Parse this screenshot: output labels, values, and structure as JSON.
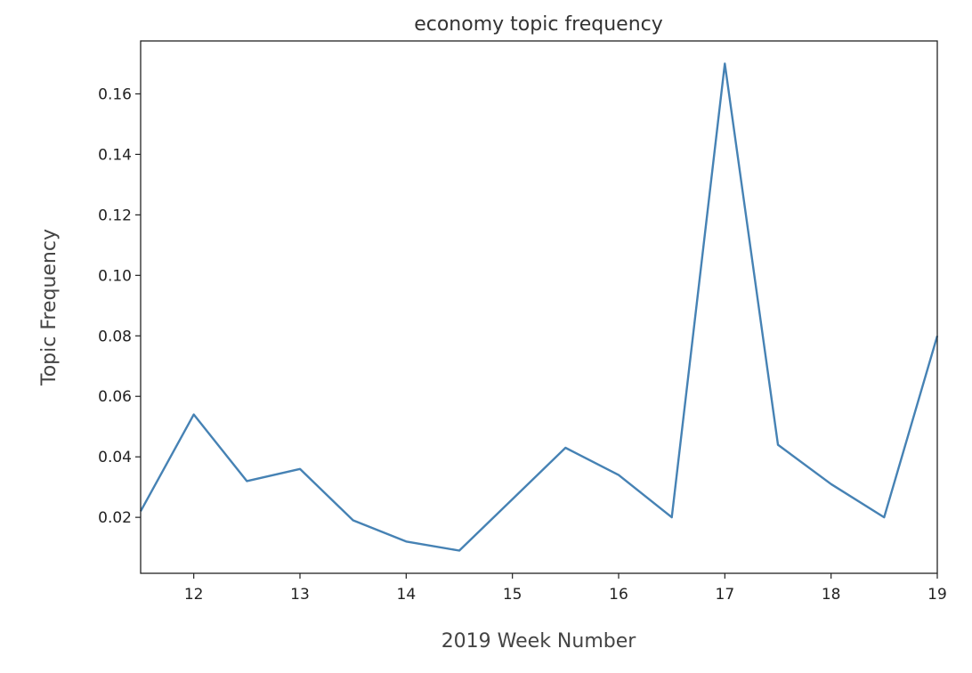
{
  "chart_data": {
    "type": "line",
    "title": "economy topic frequency",
    "xlabel": "2019 Week Number",
    "ylabel": "Topic Frequency",
    "xlim": [
      11.5,
      19
    ],
    "ylim": [
      0.0015,
      0.1775
    ],
    "grid": false,
    "x_ticks": [
      12,
      13,
      14,
      15,
      16,
      17,
      18,
      19
    ],
    "x_tick_labels": [
      "12",
      "13",
      "14",
      "15",
      "16",
      "17",
      "18",
      "19"
    ],
    "y_ticks": [
      0.02,
      0.04,
      0.06,
      0.08,
      0.1,
      0.12,
      0.14,
      0.16
    ],
    "y_tick_labels": [
      "0.02",
      "0.04",
      "0.06",
      "0.08",
      "0.10",
      "0.12",
      "0.14",
      "0.16"
    ],
    "series": [
      {
        "color": "#4682b4",
        "x": [
          11.5,
          12,
          12.5,
          13,
          13.5,
          14,
          14.5,
          15,
          15.5,
          16,
          16.5,
          17,
          17.5,
          18,
          18.5,
          19
        ],
        "y": [
          0.022,
          0.054,
          0.032,
          0.036,
          0.019,
          0.012,
          0.009,
          0.026,
          0.043,
          0.034,
          0.02,
          0.17,
          0.044,
          0.031,
          0.02,
          0.08
        ]
      }
    ]
  }
}
